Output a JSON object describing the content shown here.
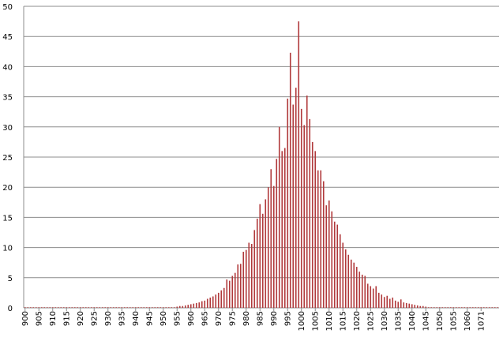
{
  "chart_data": {
    "type": "bar",
    "categories": [
      "900",
      null,
      null,
      null,
      null,
      "905",
      null,
      null,
      null,
      null,
      "910",
      null,
      null,
      null,
      null,
      "915",
      null,
      null,
      null,
      null,
      "920",
      null,
      null,
      null,
      null,
      "925",
      null,
      null,
      null,
      null,
      "930",
      null,
      null,
      null,
      null,
      "935",
      null,
      null,
      null,
      null,
      "940",
      null,
      null,
      null,
      null,
      "945",
      null,
      null,
      null,
      null,
      "950",
      null,
      null,
      null,
      null,
      "955",
      null,
      null,
      null,
      null,
      "960",
      null,
      null,
      null,
      null,
      "965",
      null,
      null,
      null,
      null,
      "970",
      null,
      null,
      null,
      null,
      "975",
      null,
      null,
      null,
      null,
      "980",
      null,
      null,
      null,
      null,
      "985",
      null,
      null,
      null,
      null,
      "990",
      null,
      null,
      null,
      null,
      "995",
      null,
      null,
      null,
      null,
      "1000",
      null,
      null,
      null,
      null,
      "1005",
      null,
      null,
      null,
      null,
      "1010",
      null,
      null,
      null,
      null,
      "1015",
      null,
      null,
      null,
      null,
      "1020",
      null,
      null,
      null,
      null,
      "1025",
      null,
      null,
      null,
      null,
      "1030",
      null,
      null,
      null,
      null,
      "1035",
      null,
      null,
      null,
      null,
      "1040",
      null,
      null,
      null,
      null,
      "1045",
      null,
      null,
      null,
      null,
      "1050",
      null,
      null,
      null,
      null,
      "1055",
      null,
      null,
      null,
      null,
      "1060",
      null,
      null,
      null,
      null,
      "1071",
      null,
      null,
      null,
      null,
      null,
      null
    ],
    "values": [
      0.1,
      0.1,
      0.1,
      0.1,
      0.1,
      0.1,
      0.1,
      0.1,
      0.1,
      0.1,
      0.1,
      0.1,
      0.1,
      0.1,
      0.1,
      0.1,
      0.1,
      0.1,
      0.1,
      0.1,
      0.1,
      0.1,
      0.1,
      0.1,
      0.1,
      0.1,
      0.1,
      0.1,
      0.1,
      0.1,
      0.1,
      0.1,
      0.1,
      0.1,
      0.1,
      0.1,
      0.1,
      0.1,
      0.1,
      0.1,
      0.1,
      0.1,
      0.1,
      0.1,
      0.1,
      0.1,
      0.1,
      0.1,
      0.1,
      0.1,
      0.1,
      0.1,
      0.1,
      0.1,
      0.1,
      0.2,
      0.3,
      0.3,
      0.4,
      0.5,
      0.6,
      0.7,
      0.8,
      0.9,
      1.1,
      1.2,
      1.5,
      1.7,
      1.9,
      2.2,
      2.5,
      2.9,
      3.3,
      4.7,
      4.5,
      5.3,
      5.8,
      7.2,
      7.3,
      9.3,
      9.6,
      10.8,
      10.6,
      12.9,
      14.8,
      17.2,
      15.6,
      18,
      20,
      23,
      20.2,
      24.7,
      30,
      26,
      26.5,
      34.7,
      42.3,
      33.7,
      36.5,
      47.5,
      33,
      30.3,
      35.2,
      31.3,
      27.5,
      26,
      22.8,
      22.8,
      21,
      17,
      17.8,
      16,
      14.3,
      13.8,
      12.2,
      10.8,
      9.7,
      8.8,
      8,
      7.5,
      6.8,
      6,
      5.5,
      5.3,
      4,
      3.6,
      3.2,
      3.6,
      2.5,
      2.2,
      1.8,
      2,
      1.5,
      1.7,
      1.2,
      1,
      1.4,
      0.9,
      0.8,
      0.7,
      0.6,
      0.5,
      0.4,
      0.3,
      0.3,
      0.2,
      0.1,
      0.1,
      0.1,
      0.1,
      0.1,
      0.1,
      0.1,
      0.1,
      0.1,
      0.1,
      0.1,
      0.1,
      0.1,
      0.1,
      0.1,
      0.1,
      0.1,
      0.1,
      0.1,
      0.1,
      0.1,
      0.1,
      0.1,
      0.1,
      0.1,
      0.1
    ],
    "color": "#b0393b",
    "ylim": [
      0,
      50
    ],
    "yticks": [
      0,
      5,
      10,
      15,
      20,
      25,
      30,
      35,
      40,
      45,
      50
    ],
    "grid": true
  }
}
